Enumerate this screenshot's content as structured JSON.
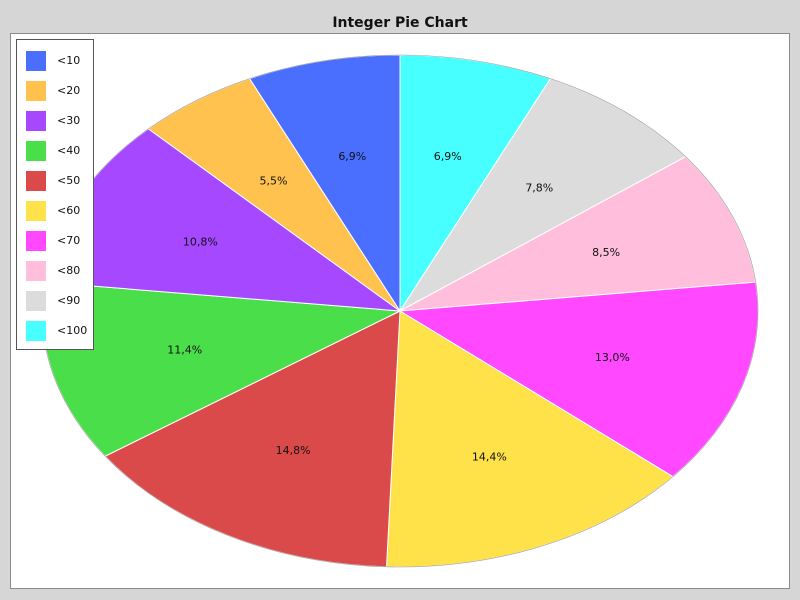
{
  "chart_data": {
    "type": "pie",
    "title": "Integer Pie Chart",
    "legend_position": "top-left",
    "categories": [
      "<10",
      "<20",
      "<30",
      "<40",
      "<50",
      "<60",
      "<70",
      "<80",
      "<90",
      "<100"
    ],
    "values": [
      6.9,
      5.5,
      10.8,
      11.4,
      14.8,
      14.4,
      13.0,
      8.5,
      7.8,
      6.9
    ],
    "value_labels": [
      "6,9%",
      "5,5%",
      "10,8%",
      "11,4%",
      "14,8%",
      "14,4%",
      "13,0%",
      "8,5%",
      "7,8%",
      "6,9%"
    ],
    "colors": [
      "#4a6fff",
      "#ffc24e",
      "#a548ff",
      "#4ade4a",
      "#db4a4a",
      "#ffe14a",
      "#ff48ff",
      "#ffbedc",
      "#dcdcdc",
      "#48ffff"
    ],
    "slice_order_clockwise_from_top": [
      "<100",
      "<90",
      "<80",
      "<70",
      "<60",
      "<50",
      "<40",
      "<30",
      "<20",
      "<10"
    ]
  }
}
